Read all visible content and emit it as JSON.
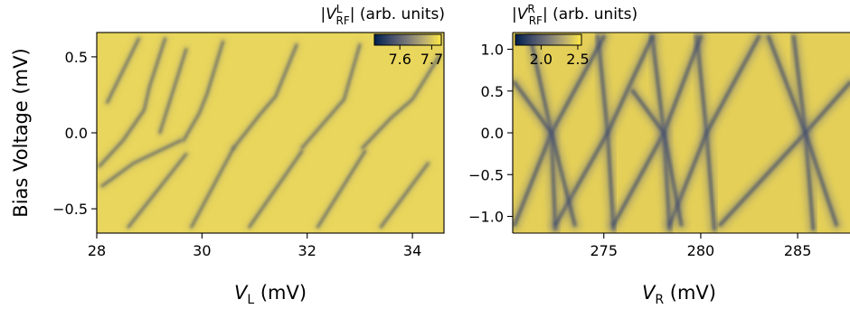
{
  "chart_data": [
    {
      "type": "heatmap",
      "xlabel": "V",
      "xlabel_sub": "L",
      "xlabel_unit": " (mV)",
      "ylabel": "Bias Voltage (mV)",
      "xlim": [
        28.0,
        34.6
      ],
      "ylim": [
        -0.66,
        0.66
      ],
      "xticks": [
        28,
        30,
        32,
        34
      ],
      "yticks": [
        0.5,
        0.0,
        -0.5
      ],
      "ytick_labels": [
        "0.5",
        "0.0",
        "−0.5"
      ],
      "colorbar": {
        "label_main": "V",
        "label_sup": "L",
        "label_sub": "RF",
        "label_unit": "(arb. units)",
        "ticks": [
          7.6,
          7.7
        ],
        "tick_labels": [
          "7.6",
          "7.7"
        ],
        "range": [
          7.52,
          7.73
        ]
      },
      "colormap": [
        "#00204d",
        "#414d6b",
        "#7c7b78",
        "#bcaf6f",
        "#ffea46"
      ],
      "dark_line_traces": [
        {
          "points": [
            [
              28.05,
              -0.22
            ],
            [
              28.5,
              -0.05
            ],
            [
              28.9,
              0.15
            ],
            [
              29.0,
              0.3
            ],
            [
              29.3,
              0.62
            ]
          ]
        },
        {
          "points": [
            [
              29.65,
              -0.05
            ],
            [
              29.95,
              0.13
            ],
            [
              30.1,
              0.26
            ],
            [
              30.4,
              0.6
            ]
          ]
        },
        {
          "points": [
            [
              30.6,
              -0.1
            ],
            [
              31.1,
              0.12
            ],
            [
              31.4,
              0.24
            ],
            [
              31.8,
              0.58
            ]
          ]
        },
        {
          "points": [
            [
              31.9,
              -0.1
            ],
            [
              32.4,
              0.1
            ],
            [
              32.7,
              0.22
            ],
            [
              33.0,
              0.58
            ]
          ]
        },
        {
          "points": [
            [
              33.05,
              -0.1
            ],
            [
              33.6,
              0.1
            ],
            [
              34.0,
              0.22
            ],
            [
              34.5,
              0.5
            ]
          ]
        },
        {
          "points": [
            [
              28.1,
              -0.35
            ],
            [
              28.7,
              -0.2
            ],
            [
              29.6,
              -0.05
            ]
          ]
        },
        {
          "points": [
            [
              28.6,
              -0.62
            ],
            [
              29.7,
              -0.14
            ]
          ]
        },
        {
          "points": [
            [
              29.8,
              -0.62
            ],
            [
              30.6,
              -0.1
            ]
          ]
        },
        {
          "points": [
            [
              30.9,
              -0.62
            ],
            [
              31.9,
              -0.12
            ]
          ]
        },
        {
          "points": [
            [
              32.2,
              -0.62
            ],
            [
              33.1,
              -0.12
            ]
          ]
        },
        {
          "points": [
            [
              33.4,
              -0.62
            ],
            [
              34.3,
              -0.2
            ]
          ]
        },
        {
          "points": [
            [
              29.2,
              0.0
            ],
            [
              29.7,
              0.55
            ]
          ]
        },
        {
          "points": [
            [
              28.2,
              0.2
            ],
            [
              28.8,
              0.62
            ]
          ]
        }
      ]
    },
    {
      "type": "heatmap",
      "xlabel": "V",
      "xlabel_sub": "R",
      "xlabel_unit": " (mV)",
      "ylabel": "",
      "xlim": [
        270.3,
        287.7
      ],
      "ylim": [
        -1.2,
        1.2
      ],
      "xticks": [
        275,
        280,
        285
      ],
      "yticks": [
        1.0,
        0.5,
        0.0,
        -0.5,
        -1.0
      ],
      "ytick_labels": [
        "1.0",
        "0.5",
        "0.0",
        "−0.5",
        "−1.0"
      ],
      "colorbar": {
        "label_main": "V",
        "label_sup": "R",
        "label_sub": "RF",
        "label_unit": "(arb. units)",
        "ticks": [
          2.0,
          2.5
        ],
        "tick_labels": [
          "2.0",
          "2.5"
        ],
        "range": [
          1.65,
          2.55
        ]
      },
      "colormap": [
        "#00204d",
        "#414d6b",
        "#7c7b78",
        "#bcaf6f",
        "#ffea46"
      ],
      "dark_line_traces": [
        {
          "points": [
            [
              271.2,
              1.15
            ],
            [
              272.3,
              0.0
            ],
            [
              272.5,
              -1.15
            ]
          ]
        },
        {
          "points": [
            [
              274.7,
              1.15
            ],
            [
              275.2,
              0.0
            ],
            [
              275.5,
              -1.15
            ]
          ]
        },
        {
          "points": [
            [
              277.5,
              1.15
            ],
            [
              278.1,
              0.0
            ],
            [
              278.4,
              -1.15
            ]
          ]
        },
        {
          "points": [
            [
              279.8,
              1.15
            ],
            [
              280.3,
              0.0
            ],
            [
              280.7,
              -1.15
            ]
          ]
        },
        {
          "points": [
            [
              284.8,
              1.15
            ],
            [
              285.4,
              0.0
            ],
            [
              285.8,
              -1.15
            ]
          ]
        },
        {
          "points": [
            [
              270.4,
              -1.1
            ],
            [
              272.3,
              0.0
            ],
            [
              275.0,
              1.15
            ]
          ]
        },
        {
          "points": [
            [
              272.5,
              -1.1
            ],
            [
              275.2,
              0.0
            ],
            [
              277.5,
              1.15
            ]
          ]
        },
        {
          "points": [
            [
              275.5,
              -1.1
            ],
            [
              278.1,
              0.0
            ],
            [
              280.0,
              1.15
            ]
          ]
        },
        {
          "points": [
            [
              278.4,
              -1.1
            ],
            [
              280.3,
              0.0
            ],
            [
              283.0,
              1.15
            ]
          ]
        },
        {
          "points": [
            [
              281.0,
              -1.1
            ],
            [
              285.4,
              0.0
            ],
            [
              287.7,
              0.6
            ]
          ]
        },
        {
          "points": [
            [
              270.4,
              0.6
            ],
            [
              272.3,
              0.0
            ],
            [
              273.5,
              -1.1
            ]
          ]
        },
        {
          "points": [
            [
              276.5,
              0.5
            ],
            [
              278.1,
              0.0
            ],
            [
              279.0,
              -1.1
            ]
          ]
        },
        {
          "points": [
            [
              283.5,
              1.15
            ],
            [
              285.4,
              0.0
            ],
            [
              287.0,
              -1.1
            ]
          ]
        }
      ]
    }
  ]
}
